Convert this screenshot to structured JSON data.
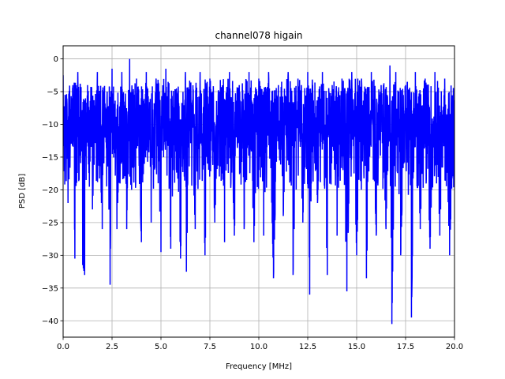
{
  "chart_data": {
    "type": "line",
    "title": "channel078 higain",
    "xlabel": "Frequency [MHz]",
    "ylabel": "PSD [dB]",
    "xlim": [
      0,
      20
    ],
    "ylim": [
      -42.5,
      2
    ],
    "grid": true,
    "x_ticks": [
      0,
      2.5,
      5,
      7.5,
      10,
      12.5,
      15,
      17.5,
      20
    ],
    "x_tick_labels": [
      "0.0",
      "2.5",
      "5.0",
      "7.5",
      "10.0",
      "12.5",
      "15.0",
      "17.5",
      "20.0"
    ],
    "y_ticks": [
      0,
      -5,
      -10,
      -15,
      -20,
      -25,
      -30,
      -35,
      -40
    ],
    "y_tick_labels": [
      "0",
      "−5",
      "−10",
      "−15",
      "−20",
      "−25",
      "−30",
      "−35",
      "−40"
    ],
    "series": [
      {
        "color": "#0000ff",
        "x": [
          0.0,
          0.25,
          0.5,
          0.6,
          0.75,
          1.0,
          1.1,
          1.25,
          1.5,
          1.75,
          2.0,
          2.25,
          2.4,
          2.5,
          2.75,
          3.0,
          3.25,
          3.4,
          3.5,
          3.75,
          4.0,
          4.25,
          4.5,
          4.75,
          5.0,
          5.25,
          5.5,
          5.75,
          6.0,
          6.25,
          6.3,
          6.5,
          6.75,
          7.0,
          7.25,
          7.5,
          7.75,
          8.0,
          8.25,
          8.5,
          8.75,
          9.0,
          9.25,
          9.5,
          9.75,
          10.0,
          10.25,
          10.5,
          10.75,
          11.0,
          11.25,
          11.5,
          11.75,
          12.0,
          12.25,
          12.5,
          12.6,
          12.75,
          13.0,
          13.25,
          13.5,
          13.75,
          14.0,
          14.25,
          14.5,
          14.75,
          15.0,
          15.25,
          15.5,
          15.75,
          16.0,
          16.25,
          16.5,
          16.7,
          16.8,
          17.0,
          17.25,
          17.5,
          17.8,
          18.0,
          18.25,
          18.5,
          18.75,
          19.0,
          19.25,
          19.5,
          19.75,
          20.0
        ],
        "y": [
          -2.5,
          -22,
          -4,
          -30.5,
          -2,
          -31.5,
          -33,
          -4,
          -23,
          -2,
          -26,
          -5,
          -34.5,
          -1.5,
          -26,
          -2,
          -26,
          0,
          -20,
          -3,
          -28,
          -2,
          -25,
          -3,
          -29.5,
          -1.5,
          -29,
          -5,
          -30.5,
          -2,
          -32.5,
          -4,
          -26,
          -2,
          -30,
          -3,
          -25,
          -5,
          -28,
          -2,
          -27,
          -4,
          -26,
          -2,
          -28,
          -3,
          -27,
          -2,
          -33.5,
          -4,
          -24,
          -2,
          -33,
          -3,
          -25,
          -2,
          -36,
          -4,
          -22,
          -2,
          -33,
          -4,
          -27,
          -3,
          -35.5,
          -2,
          -30,
          -3,
          -33.5,
          -2,
          -27,
          -4,
          -26,
          -1,
          -40.5,
          -2,
          -30,
          -4,
          -39.5,
          -2,
          -26,
          -3,
          -29,
          -2,
          -27,
          -3,
          -30,
          -6.5
        ]
      }
    ]
  }
}
